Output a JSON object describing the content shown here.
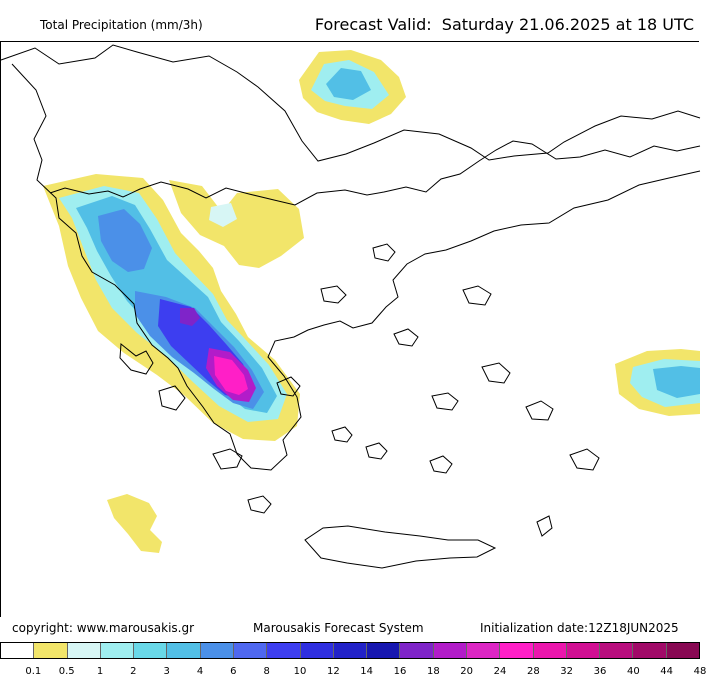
{
  "header": {
    "title": "Total Precipitation (mm/3h)",
    "forecast_label": "Forecast Valid:",
    "forecast_time": "Saturday 21.06.2025 at 18 UTC"
  },
  "footer": {
    "copyright": "copyright: www.marousakis.gr",
    "system": "Marousakis Forecast System",
    "initialization": "Initialization date:12Z18JUN2025"
  },
  "legend": {
    "colors": [
      "#ffffff",
      "#f2e56a",
      "#d7f6f5",
      "#9feef0",
      "#69d8e8",
      "#52bfe6",
      "#4b90e8",
      "#4f68f0",
      "#3d3ef0",
      "#2f2fe0",
      "#2222c8",
      "#1717b0",
      "#7f24c9",
      "#b21cc9",
      "#dc26c4",
      "#ff1fc7",
      "#eb16ad",
      "#d10f93",
      "#b90d7e",
      "#a10a68",
      "#880853"
    ],
    "labels": [
      "0.1",
      "0.5",
      "1",
      "2",
      "3",
      "4",
      "6",
      "8",
      "10",
      "12",
      "14",
      "16",
      "18",
      "20",
      "24",
      "28",
      "32",
      "36",
      "40",
      "44",
      "48"
    ]
  },
  "map": {
    "region": "Greece"
  }
}
